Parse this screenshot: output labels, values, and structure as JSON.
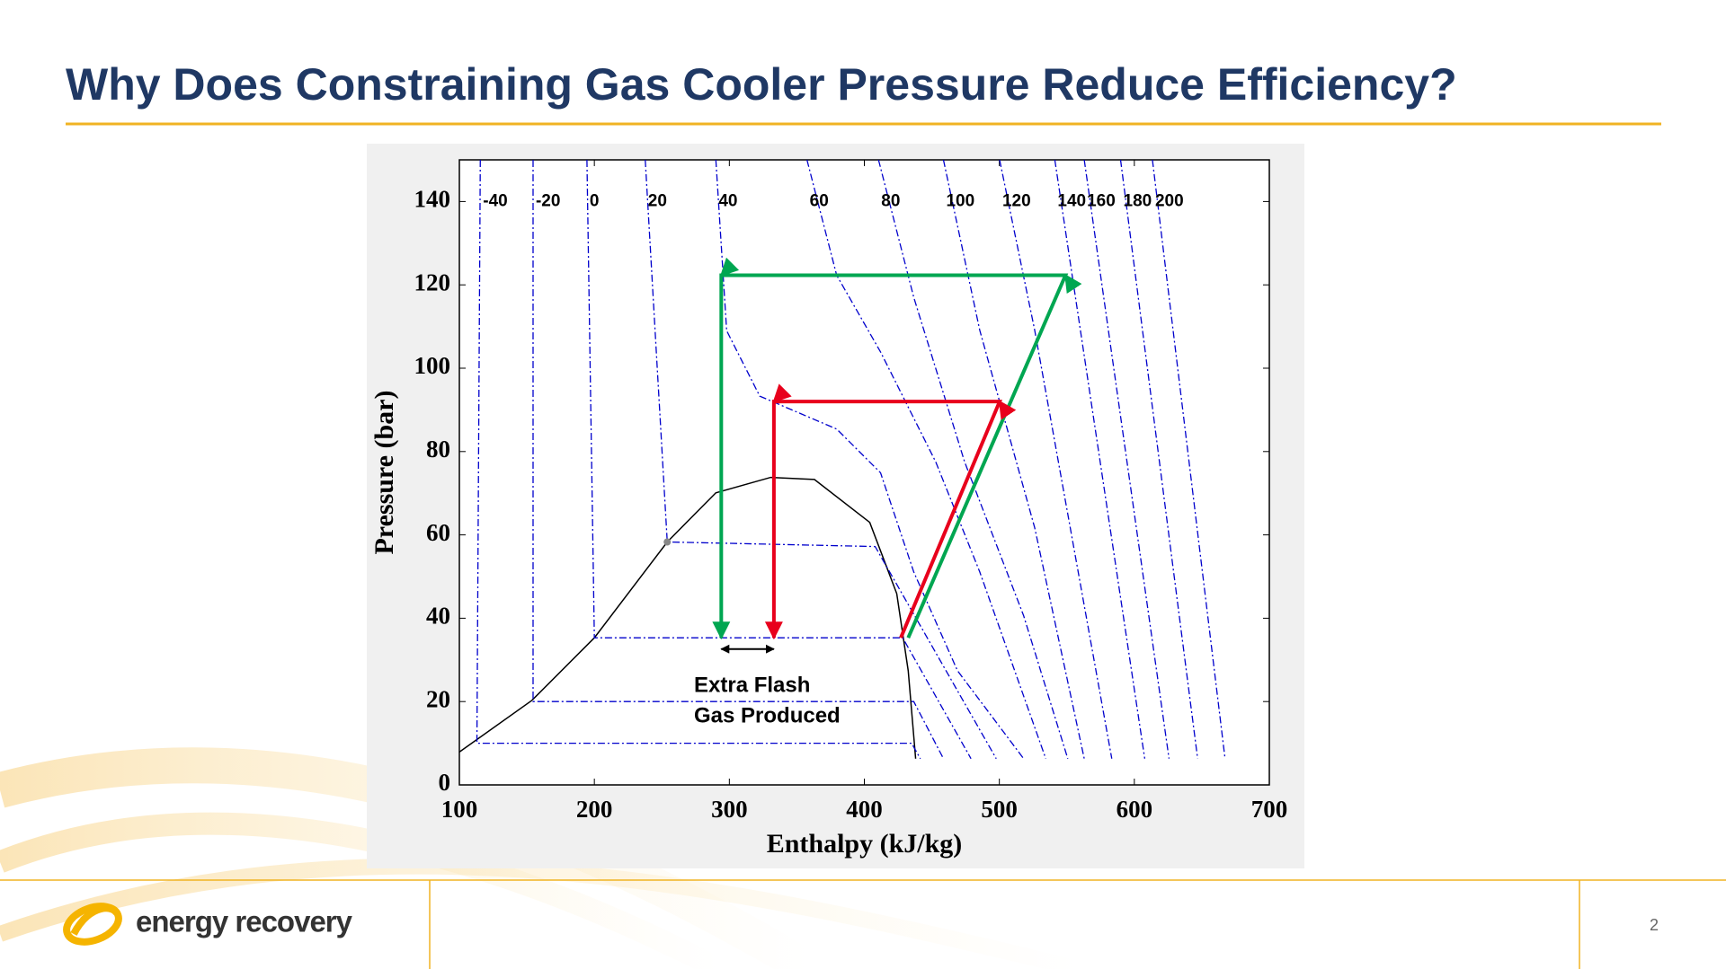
{
  "slide": {
    "title": "Why Does Constraining Gas Cooler Pressure Reduce Efficiency?",
    "logo": "energy recovery",
    "page_number": "2"
  },
  "chart_data": {
    "type": "line",
    "xlabel": "Enthalpy (kJ/kg)",
    "ylabel": "Pressure (bar)",
    "xlim": [
      100,
      700
    ],
    "ylim": [
      0,
      150
    ],
    "xticks": [
      100,
      200,
      300,
      400,
      500,
      600,
      700
    ],
    "yticks": [
      0,
      20,
      40,
      60,
      80,
      100,
      120,
      140
    ],
    "annotations": [
      "Extra Flash",
      "Gas Produced"
    ],
    "points": [
      {
        "x": 254,
        "y": 58.3,
        "color": "#888888"
      }
    ],
    "series": [
      {
        "color": "#000000",
        "x": [
          100,
          153.8,
          200,
          254,
          290,
          330.6,
          363,
          404,
          424,
          432.5,
          438
        ],
        "y": [
          7.9,
          20.3,
          35.3,
          58.3,
          70.1,
          73.8,
          73.3,
          63,
          45.9,
          27.4,
          6.3
        ]
      },
      {
        "name": "-40",
        "color": "#0000cc",
        "style": "dash-dot",
        "x": [
          115.5,
          113,
          435,
          441.5
        ],
        "y": [
          150,
          10,
          10,
          6.3
        ]
      },
      {
        "name": "-20",
        "color": "#0000cc",
        "style": "dash-dot",
        "x": [
          154.6,
          154.6,
          436.6,
          458.6
        ],
        "y": [
          150,
          20,
          20,
          6.3
        ]
      },
      {
        "name": "0",
        "color": "#0000cc",
        "style": "dash-dot",
        "x": [
          194.5,
          200,
          428.4,
          479
        ],
        "y": [
          150,
          35.3,
          35.3,
          6.3
        ]
      },
      {
        "name": "20",
        "color": "#0000cc",
        "style": "dash-dot",
        "x": [
          237.7,
          254,
          408,
          497.7
        ],
        "y": [
          150,
          58.3,
          57.2,
          6.3
        ]
      },
      {
        "name": "40",
        "color": "#0000cc",
        "style": "dash-dot",
        "x": [
          290,
          298,
          322.5,
          379.5,
          412,
          436.6,
          469,
          518
        ],
        "y": [
          150,
          109,
          93.3,
          85.4,
          74.9,
          51.1,
          27.4,
          6.3
        ]
      },
      {
        "name": "60",
        "color": "#0000cc",
        "style": "dash-dot",
        "x": [
          357.5,
          379.5,
          412,
          452.9,
          485.5,
          534.4
        ],
        "y": [
          150,
          122.3,
          103.9,
          77.5,
          51.1,
          6.3
        ]
      },
      {
        "name": "80",
        "color": "#0000cc",
        "style": "dash-dot",
        "x": [
          410.5,
          436.6,
          474.3,
          518,
          550.7
        ],
        "y": [
          150,
          117,
          77.5,
          40.6,
          6.3
        ]
      },
      {
        "name": "100",
        "color": "#0000cc",
        "style": "dash-dot",
        "x": [
          458.6,
          485.5,
          526.2,
          562.9
        ],
        "y": [
          150,
          109.1,
          61.7,
          6.3
        ]
      },
      {
        "name": "120",
        "color": "#0000cc",
        "style": "dash-dot",
        "x": [
          500.2,
          526.2,
          583.3
        ],
        "y": [
          150,
          109.1,
          6.3
        ]
      },
      {
        "name": "140",
        "color": "#0000cc",
        "style": "dash-dot",
        "x": [
          541.1,
          607.7
        ],
        "y": [
          150,
          6.3
        ]
      },
      {
        "name": "160",
        "color": "#0000cc",
        "style": "dash-dot",
        "x": [
          562.9,
          625.7
        ],
        "y": [
          150,
          6.3
        ]
      },
      {
        "name": "180",
        "color": "#0000cc",
        "style": "dash-dot",
        "x": [
          589.8,
          646.9
        ],
        "y": [
          150,
          6.3
        ]
      },
      {
        "name": "200",
        "color": "#0000cc",
        "style": "dash-dot",
        "x": [
          613.4,
          667.2
        ],
        "y": [
          150,
          6.3
        ]
      },
      {
        "color": "#00a651",
        "arrows": "each",
        "x": [
          432.5,
          549,
          294,
          294
        ],
        "y": [
          35.3,
          122.3,
          122.3,
          35.3
        ]
      },
      {
        "color": "#e8001c",
        "arrows": "each",
        "x": [
          427,
          500.2,
          333,
          333
        ],
        "y": [
          35.3,
          92,
          92,
          35.3
        ]
      },
      {
        "color": "#000000",
        "arrows": "both",
        "x": [
          294,
          333
        ],
        "y": [
          32.6,
          32.6
        ]
      }
    ]
  }
}
